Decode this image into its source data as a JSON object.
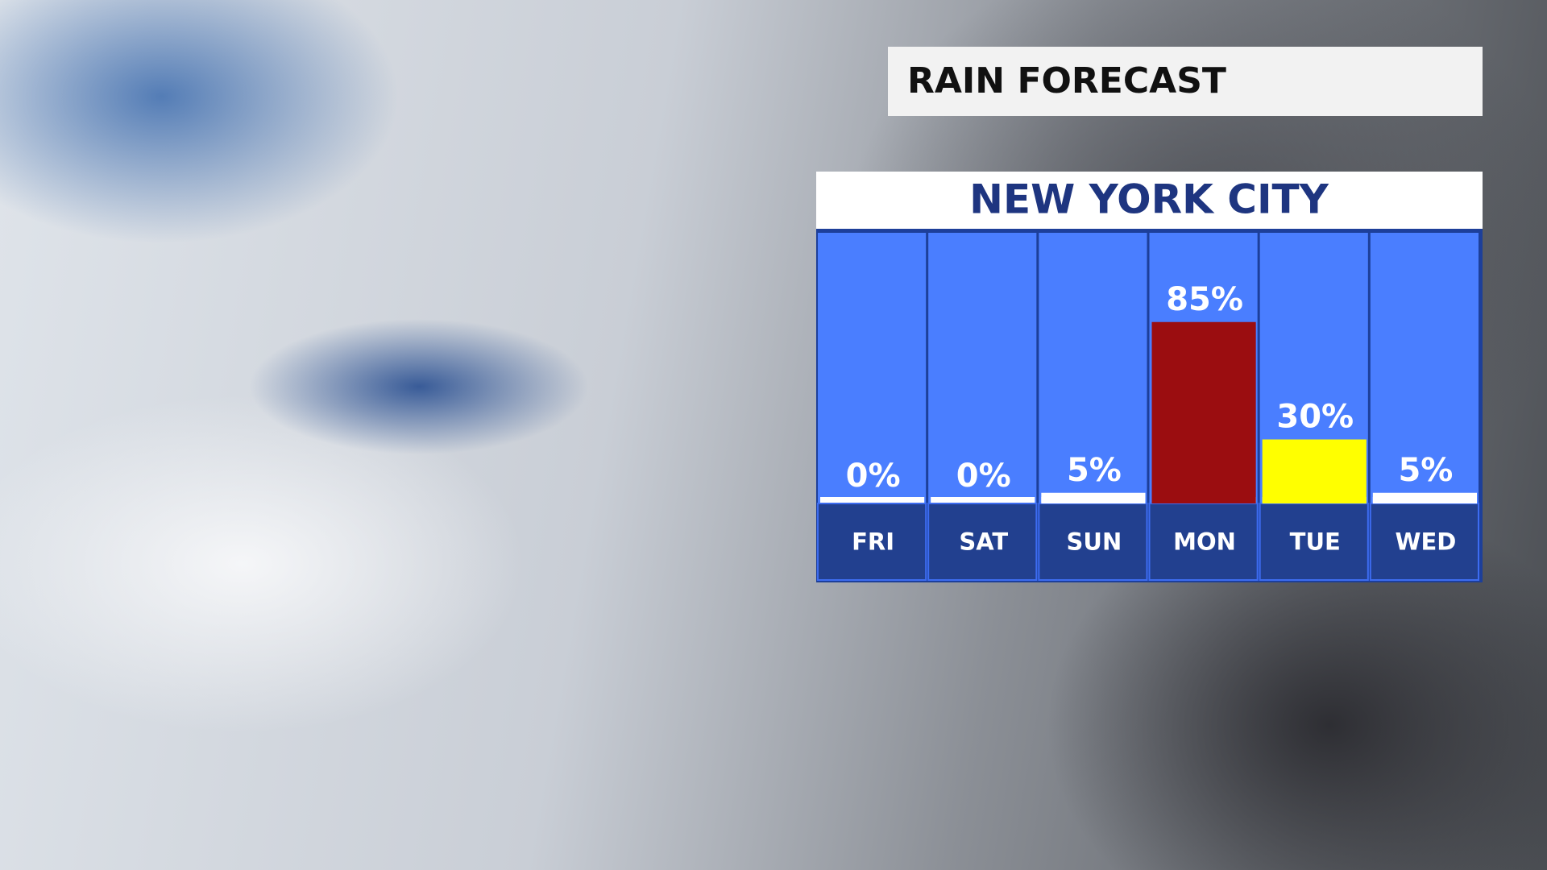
{
  "title": "RAIN FORECAST",
  "chart_data": {
    "type": "bar",
    "title": "NEW YORK CITY",
    "categories": [
      "FRI",
      "SAT",
      "SUN",
      "MON",
      "TUE",
      "WED"
    ],
    "values": [
      0,
      0,
      5,
      85,
      30,
      5
    ],
    "value_labels": [
      "0%",
      "0%",
      "5%",
      "85%",
      "30%",
      "5%"
    ],
    "colors": [
      "#ffffff",
      "#ffffff",
      "#ffffff",
      "#9b0d10",
      "#ffff00",
      "#ffffff"
    ]
  }
}
